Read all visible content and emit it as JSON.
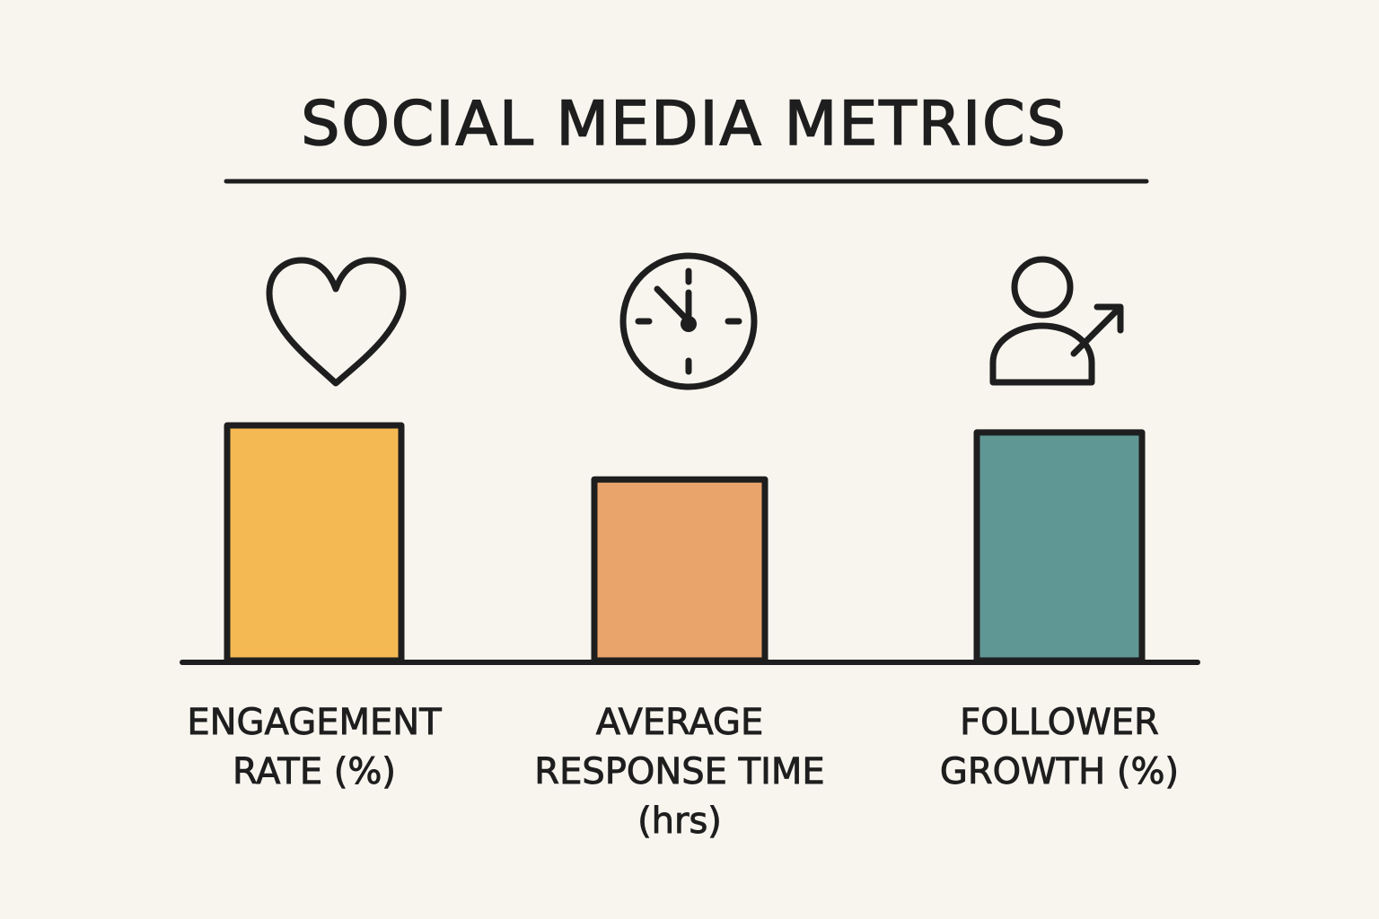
{
  "chart_data": {
    "type": "bar",
    "title": "SOCIAL MEDIA METRICS",
    "categories": [
      "ENGAGEMENT\nRATE (%)",
      "AVERAGE\nRESPONSE TIME\n(hrs)",
      "FOLLOWER\nGROWTH (%)"
    ],
    "values": [
      100,
      77,
      97
    ],
    "ylim": [
      0,
      100
    ],
    "xlabel": "",
    "ylabel": "",
    "grid": false,
    "colors": [
      "#f5b953",
      "#e9a46b",
      "#5f9794"
    ],
    "icons": [
      "heart-icon",
      "clock-icon",
      "user-growth-icon"
    ]
  }
}
